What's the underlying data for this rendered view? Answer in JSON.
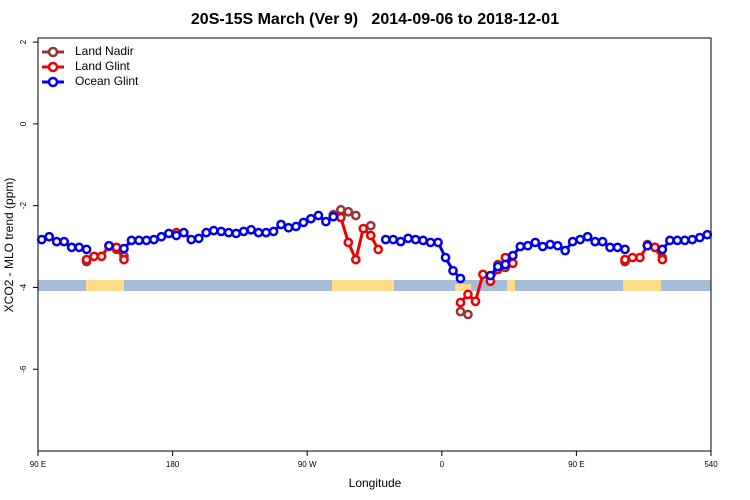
{
  "chart_data": {
    "type": "line",
    "title": "20S-15S March (Ver 9)   2014-09-06 to 2018-12-01",
    "x_label": "Longitude",
    "y_label": "XCO2 - MLO trend (ppm)",
    "xlim": [
      90,
      540
    ],
    "xticks": [
      {
        "value": 90,
        "label": "90 E"
      },
      180,
      {
        "value": 270,
        "label": "90 W"
      },
      {
        "value": 360,
        "label": "0"
      },
      {
        "value": 450,
        "label": "90 E"
      },
      540
    ],
    "ylim": [
      -8,
      2.1
    ],
    "yticks": [
      2,
      0,
      -2,
      -4,
      -6
    ],
    "legend": "top-left",
    "x": [
      92.5,
      97.5,
      102.5,
      107.5,
      112.5,
      117.5,
      122.5,
      127.5,
      132.5,
      137.5,
      142.5,
      147.5,
      152.5,
      157.5,
      162.5,
      167.5,
      172.5,
      177.5,
      182.5,
      187.5,
      192.5,
      197.5,
      202.5,
      207.5,
      212.5,
      217.5,
      222.5,
      227.5,
      232.5,
      237.5,
      242.5,
      247.5,
      252.5,
      257.5,
      262.5,
      267.5,
      272.5,
      277.5,
      282.5,
      287.5,
      292.5,
      297.5,
      302.5,
      307.5,
      312.5,
      317.5,
      322.5,
      327.5,
      332.5,
      337.5,
      342.5,
      347.5,
      352.5,
      357.5,
      362.5,
      367.5,
      372.5,
      377.5,
      382.5,
      387.5,
      392.5,
      397.5,
      402.5,
      407.5,
      412.5,
      417.5,
      422.5,
      427.5,
      432.5,
      437.5,
      442.5,
      447.5,
      452.5,
      457.5,
      462.5,
      467.5,
      472.5,
      477.5,
      482.5,
      487.5,
      492.5,
      497.5,
      502.5,
      507.5,
      512.5,
      517.5,
      522.5,
      527.5,
      532.5,
      537.5
    ],
    "series": [
      {
        "name": "Land Nadir",
        "color": "#993333",
        "values": [
          null,
          null,
          null,
          null,
          null,
          null,
          -3.37,
          null,
          null,
          -3.0,
          -3.07,
          -3.24,
          null,
          null,
          null,
          null,
          null,
          null,
          null,
          null,
          null,
          null,
          null,
          null,
          null,
          null,
          null,
          null,
          null,
          null,
          null,
          null,
          null,
          null,
          null,
          null,
          null,
          null,
          null,
          -2.22,
          -2.1,
          -2.15,
          -2.24,
          null,
          -2.49,
          null,
          null,
          null,
          null,
          null,
          null,
          null,
          null,
          null,
          null,
          null,
          -4.59,
          -4.66,
          null,
          null,
          null,
          -3.44,
          -3.51,
          null,
          null,
          null,
          null,
          null,
          null,
          null,
          null,
          null,
          null,
          null,
          null,
          null,
          null,
          null,
          -3.37,
          null,
          null,
          -2.95,
          -3.02,
          -3.27,
          null,
          null,
          null,
          null,
          null,
          null
        ]
      },
      {
        "name": "Land Glint",
        "color": "#ee0000",
        "values": [
          null,
          null,
          null,
          null,
          null,
          null,
          -3.32,
          -3.24,
          -3.24,
          -2.98,
          -3.02,
          -3.32,
          null,
          null,
          null,
          null,
          null,
          null,
          -2.66,
          null,
          null,
          null,
          null,
          null,
          null,
          null,
          null,
          null,
          null,
          null,
          null,
          null,
          null,
          null,
          null,
          null,
          null,
          null,
          null,
          -2.27,
          -2.29,
          -2.9,
          -3.32,
          -2.56,
          -2.73,
          -3.07,
          null,
          null,
          null,
          null,
          null,
          null,
          null,
          null,
          null,
          null,
          -4.37,
          -4.17,
          -4.34,
          -3.68,
          -3.85,
          -3.56,
          -3.27,
          -3.41,
          null,
          null,
          null,
          null,
          null,
          null,
          null,
          null,
          null,
          null,
          null,
          null,
          null,
          null,
          -3.32,
          -3.27,
          -3.27,
          -2.98,
          -3.02,
          -3.32,
          null,
          null,
          null,
          null,
          null,
          null
        ]
      },
      {
        "name": "Ocean Glint",
        "color": "#0000ee",
        "values": [
          -2.83,
          -2.76,
          -2.88,
          -2.88,
          -3.02,
          -3.02,
          -3.07,
          null,
          null,
          -2.98,
          null,
          -3.05,
          -2.85,
          -2.85,
          -2.85,
          -2.83,
          -2.76,
          -2.68,
          -2.73,
          -2.66,
          -2.83,
          -2.8,
          -2.66,
          -2.61,
          -2.63,
          -2.66,
          -2.68,
          -2.63,
          -2.59,
          -2.66,
          -2.66,
          -2.63,
          -2.46,
          -2.54,
          -2.51,
          -2.41,
          -2.32,
          -2.24,
          -2.39,
          -2.27,
          null,
          null,
          null,
          null,
          null,
          null,
          -2.83,
          -2.83,
          -2.88,
          -2.8,
          -2.83,
          -2.85,
          -2.9,
          -2.9,
          -3.27,
          -3.59,
          -3.78,
          null,
          null,
          null,
          -3.71,
          -3.49,
          -3.44,
          -3.22,
          -3.0,
          -2.98,
          -2.9,
          -3.0,
          -2.95,
          -2.98,
          -3.1,
          -2.88,
          -2.83,
          -2.76,
          -2.88,
          -2.88,
          -3.02,
          -3.02,
          -3.07,
          null,
          null,
          -2.98,
          null,
          -3.07,
          -2.85,
          -2.85,
          -2.85,
          -2.83,
          -2.78,
          -2.71
        ]
      }
    ]
  }
}
